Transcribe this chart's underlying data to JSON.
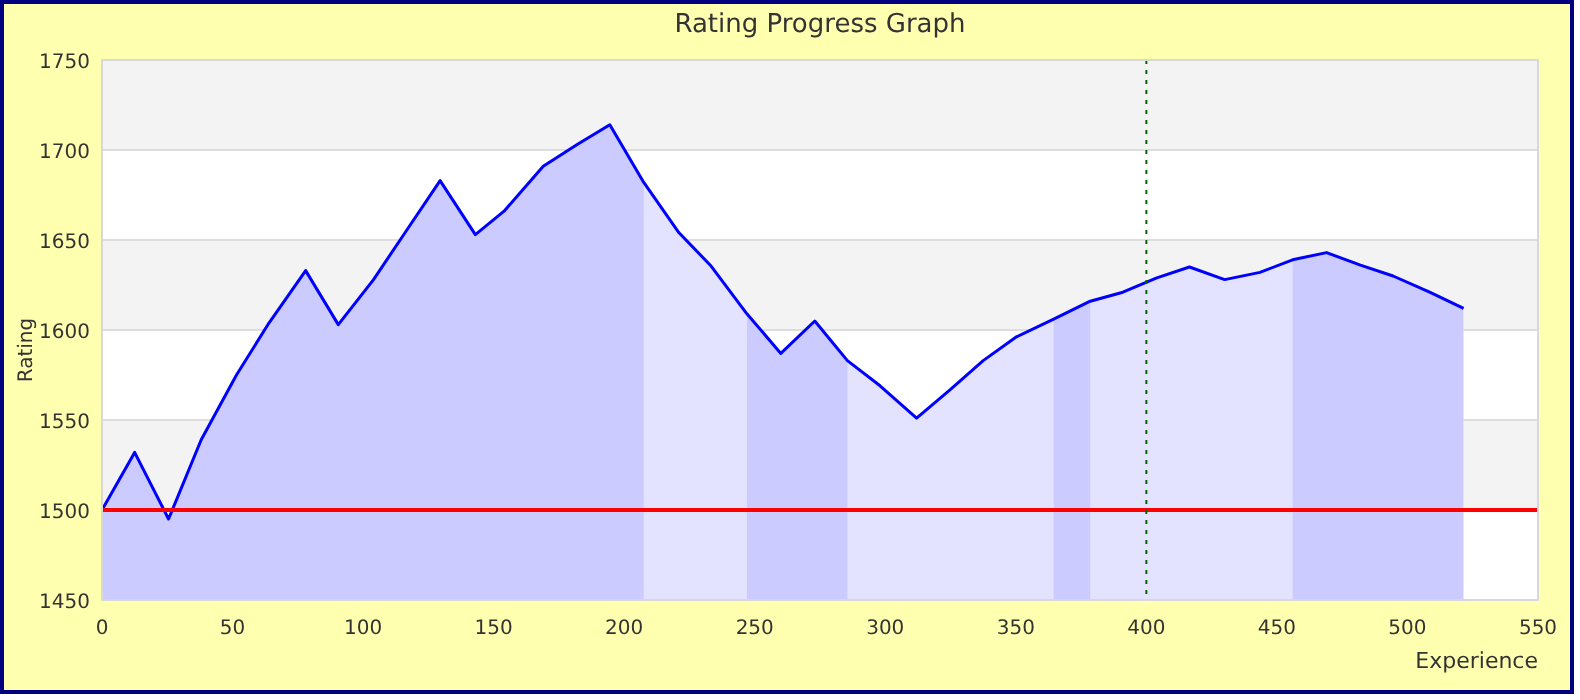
{
  "chart_data": {
    "type": "area",
    "title": "Rating Progress Graph",
    "xlabel": "Experience",
    "ylabel": "Rating",
    "x": [
      0,
      12.5,
      25.5,
      38,
      51.5,
      64,
      78,
      90.5,
      104,
      116.5,
      129.5,
      143,
      154,
      169,
      182,
      194.5,
      207.5,
      221,
      233,
      247,
      260,
      273,
      285.5,
      298,
      312,
      325,
      337.5,
      350,
      364.5,
      378.5,
      391,
      404,
      416.5,
      430,
      443.5,
      456,
      469,
      482,
      494.5,
      508.5,
      521.5
    ],
    "series": [
      {
        "color": "#0000ff",
        "values": [
          1500,
          1532,
          1495,
          1539,
          1575,
          1604,
          1633,
          1603,
          1628,
          1655,
          1683,
          1653,
          1666,
          1691,
          1703,
          1714,
          1682,
          1654,
          1636,
          1609,
          1587,
          1605,
          1583,
          1569,
          1551,
          1567,
          1583,
          1596,
          1606,
          1616,
          1621,
          1629,
          1635,
          1628,
          1632,
          1639,
          1643,
          1636,
          1630,
          1621,
          1612
        ]
      }
    ],
    "xlim": [
      0,
      550
    ],
    "ylim": [
      1450,
      1750
    ],
    "xticks": [
      0,
      50,
      100,
      150,
      200,
      250,
      300,
      350,
      400,
      450,
      500,
      550
    ],
    "yticks": [
      1450,
      1500,
      1550,
      1600,
      1650,
      1700,
      1750
    ],
    "grid": "y",
    "ref_lines": [
      {
        "axis": "y",
        "value": 1500,
        "color": "#ff0000",
        "line_style": "solid"
      },
      {
        "axis": "x",
        "value": 400,
        "color": "#006600",
        "line_style": "dotted"
      }
    ],
    "bands": [
      {
        "axis": "x",
        "from": 0,
        "to": 207.5,
        "color": "#e5e5ff"
      },
      {
        "axis": "x",
        "from": 247,
        "to": 285.5,
        "color": "#e5e5ff"
      },
      {
        "axis": "x",
        "from": 364.5,
        "to": 378.5,
        "color": "#e5e5ff"
      },
      {
        "axis": "x",
        "from": 456,
        "to": 521.5,
        "color": "#e5e5ff"
      }
    ]
  }
}
